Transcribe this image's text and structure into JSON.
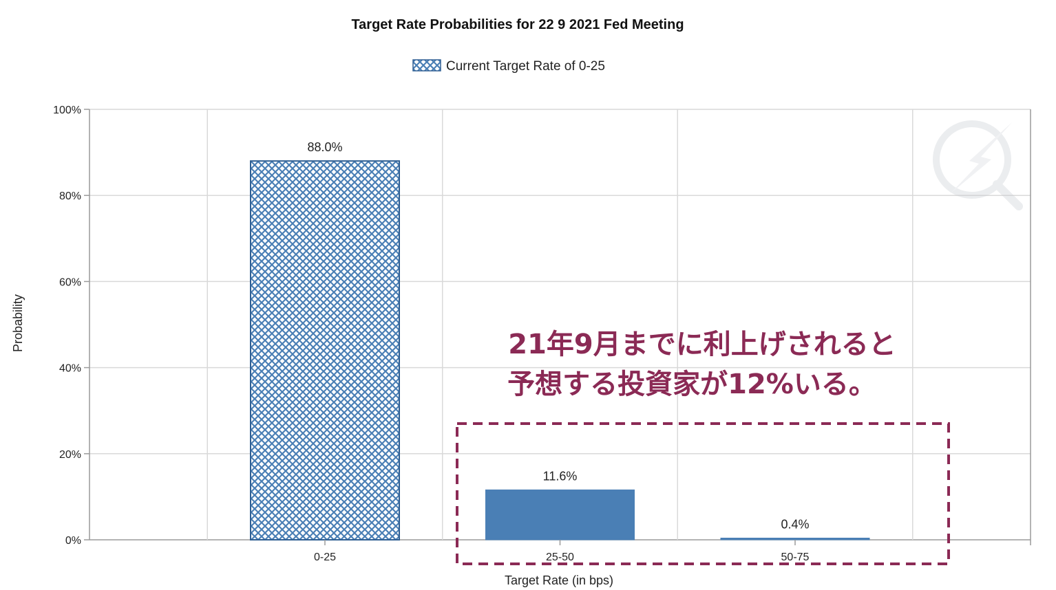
{
  "chart_data": {
    "type": "bar",
    "title": "Target Rate Probabilities for 22 9 2021 Fed Meeting",
    "xlabel": "Target Rate (in bps)",
    "ylabel": "Probability",
    "categories": [
      "0-25",
      "25-50",
      "50-75"
    ],
    "values": [
      88.0,
      11.6,
      0.4
    ],
    "value_labels": [
      "88.0%",
      "11.6%",
      "0.4%"
    ],
    "ylim": [
      0,
      100
    ],
    "yticks": [
      "0%",
      "20%",
      "40%",
      "60%",
      "80%",
      "100%"
    ],
    "grid": true,
    "legend": {
      "position": "top-center",
      "entries": [
        "Current Target Rate of 0-25"
      ]
    },
    "highlight_category": "0-25",
    "colors": {
      "bar": "#4a7fb5",
      "bar_dark": "#2f5f93",
      "grid": "#d9d9d9",
      "annotation": "#8b2a55"
    }
  },
  "annotation": {
    "lines": [
      "21年9月までに利上げされると",
      "予想する投資家が12%いる。"
    ],
    "highlighted_categories": [
      "25-50",
      "50-75"
    ]
  }
}
